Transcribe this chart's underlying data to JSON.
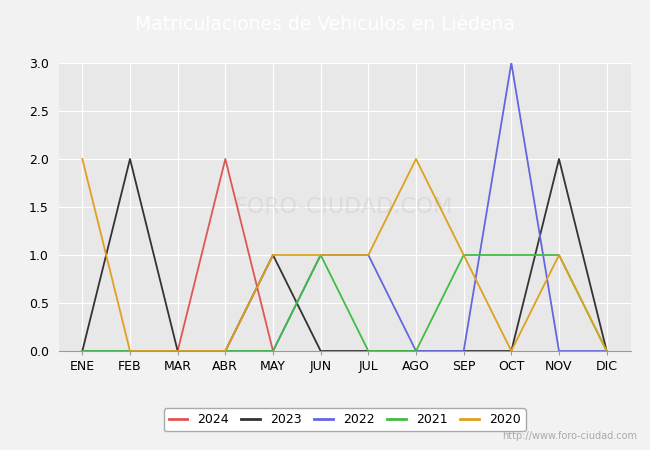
{
  "title": "Matriculaciones de Vehiculos en Liédena",
  "months": [
    "ENE",
    "FEB",
    "MAR",
    "ABR",
    "MAY",
    "JUN",
    "JUL",
    "AGO",
    "SEP",
    "OCT",
    "NOV",
    "DIC"
  ],
  "series": {
    "2024": {
      "color": "#e05555",
      "values": [
        0,
        0,
        0,
        2,
        0,
        null,
        null,
        null,
        null,
        null,
        null,
        null
      ]
    },
    "2023": {
      "color": "#333333",
      "values": [
        0,
        2,
        0,
        0,
        1,
        0,
        0,
        0,
        0,
        0,
        2,
        0
      ]
    },
    "2022": {
      "color": "#6666dd",
      "values": [
        0,
        0,
        0,
        0,
        0,
        1,
        1,
        0,
        0,
        3,
        0,
        0
      ]
    },
    "2021": {
      "color": "#44bb44",
      "values": [
        0,
        0,
        0,
        0,
        0,
        1,
        0,
        0,
        1,
        1,
        1,
        0
      ]
    },
    "2020": {
      "color": "#e0a020",
      "values": [
        2,
        0,
        0,
        0,
        1,
        1,
        1,
        2,
        1,
        0,
        1,
        0
      ]
    }
  },
  "ylim": [
    0,
    3.0
  ],
  "yticks": [
    0.0,
    0.5,
    1.0,
    1.5,
    2.0,
    2.5,
    3.0
  ],
  "background_color": "#f2f2f2",
  "plot_bg_color": "#e8e8e8",
  "title_bg_color": "#5b9bd5",
  "title_color": "#ffffff",
  "watermark": "http://www.foro-ciudad.com",
  "legend_years": [
    "2024",
    "2023",
    "2022",
    "2021",
    "2020"
  ],
  "fig_width": 6.5,
  "fig_height": 4.5,
  "dpi": 100
}
